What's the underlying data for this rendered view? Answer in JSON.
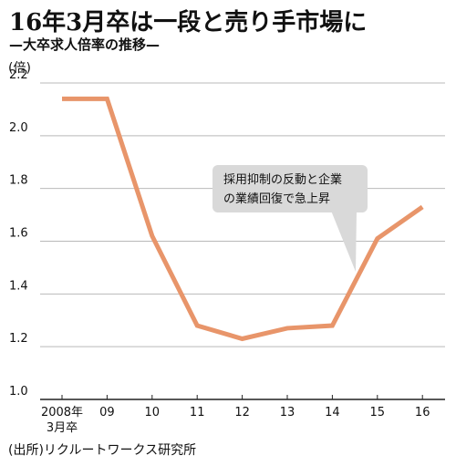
{
  "title": "16年3月卒は一段と売り手市場に",
  "subtitle": "—大卒求人倍率の推移—",
  "unit": "(倍)",
  "source": "(出所)リクルートワークス研究所",
  "annotation": [
    "採用抑制の反動と企業",
    "の業績回復で急上昇"
  ],
  "colors": {
    "line": "#e8956a",
    "grid": "#b9b9b9",
    "callout_bg": "#d9d9d9"
  },
  "chart_data": {
    "type": "line",
    "categories": [
      "2008年\n3月卒",
      "09",
      "10",
      "11",
      "12",
      "13",
      "14",
      "15",
      "16"
    ],
    "series": [
      {
        "values": [
          2.14,
          2.14,
          1.62,
          1.28,
          1.23,
          1.27,
          1.28,
          1.61,
          1.73
        ]
      }
    ],
    "ylim": [
      1.0,
      2.2
    ],
    "yticks": [
      "1.0",
      "1.2",
      "1.4",
      "1.6",
      "1.8",
      "2.0",
      "2.2"
    ],
    "ylabel": "(倍)",
    "grid": true
  }
}
